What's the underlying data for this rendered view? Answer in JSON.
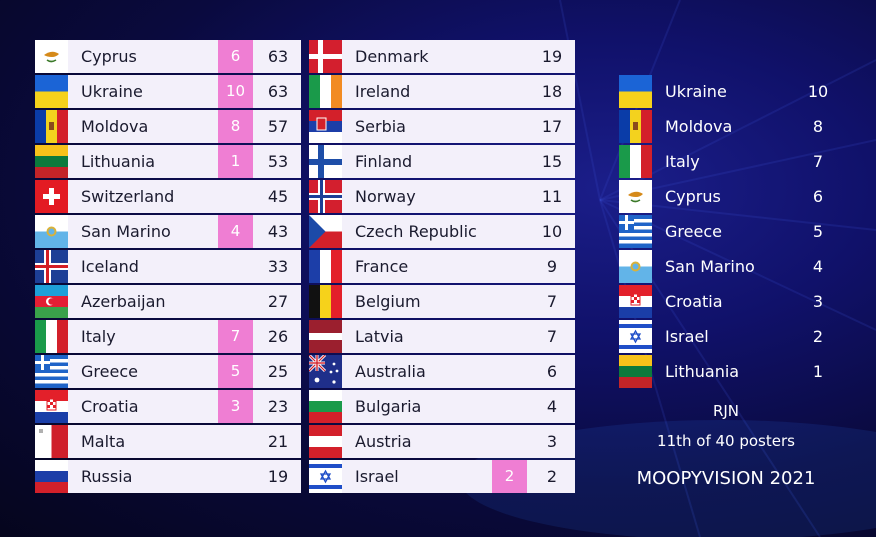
{
  "scoreboard": {
    "column1": [
      {
        "country": "Cyprus",
        "flag": "cyprus-flag",
        "points": "6",
        "total": "63"
      },
      {
        "country": "Ukraine",
        "flag": "ukraine-flag",
        "points": "10",
        "total": "63"
      },
      {
        "country": "Moldova",
        "flag": "moldova-flag",
        "points": "8",
        "total": "57"
      },
      {
        "country": "Lithuania",
        "flag": "lithuania-flag",
        "points": "1",
        "total": "53"
      },
      {
        "country": "Switzerland",
        "flag": "switzerland-flag",
        "points": "",
        "total": "45"
      },
      {
        "country": "San Marino",
        "flag": "san-marino-flag",
        "points": "4",
        "total": "43"
      },
      {
        "country": "Iceland",
        "flag": "iceland-flag",
        "points": "",
        "total": "33"
      },
      {
        "country": "Azerbaijan",
        "flag": "azerbaijan-flag",
        "points": "",
        "total": "27"
      },
      {
        "country": "Italy",
        "flag": "italy-flag",
        "points": "7",
        "total": "26"
      },
      {
        "country": "Greece",
        "flag": "greece-flag",
        "points": "5",
        "total": "25"
      },
      {
        "country": "Croatia",
        "flag": "croatia-flag",
        "points": "3",
        "total": "23"
      },
      {
        "country": "Malta",
        "flag": "malta-flag",
        "points": "",
        "total": "21"
      },
      {
        "country": "Russia",
        "flag": "russia-flag",
        "points": "",
        "total": "19"
      }
    ],
    "column2": [
      {
        "country": "Denmark",
        "flag": "denmark-flag",
        "points": "",
        "total": "19"
      },
      {
        "country": "Ireland",
        "flag": "ireland-flag",
        "points": "",
        "total": "18"
      },
      {
        "country": "Serbia",
        "flag": "serbia-flag",
        "points": "",
        "total": "17"
      },
      {
        "country": "Finland",
        "flag": "finland-flag",
        "points": "",
        "total": "15"
      },
      {
        "country": "Norway",
        "flag": "norway-flag",
        "points": "",
        "total": "11"
      },
      {
        "country": "Czech Republic",
        "flag": "czech-flag",
        "points": "",
        "total": "10"
      },
      {
        "country": "France",
        "flag": "france-flag",
        "points": "",
        "total": "9"
      },
      {
        "country": "Belgium",
        "flag": "belgium-flag",
        "points": "",
        "total": "7"
      },
      {
        "country": "Latvia",
        "flag": "latvia-flag",
        "points": "",
        "total": "7"
      },
      {
        "country": "Australia",
        "flag": "australia-flag",
        "points": "",
        "total": "6"
      },
      {
        "country": "Bulgaria",
        "flag": "bulgaria-flag",
        "points": "",
        "total": "4"
      },
      {
        "country": "Austria",
        "flag": "austria-flag",
        "points": "",
        "total": "3"
      },
      {
        "country": "Israel",
        "flag": "israel-flag",
        "points": "2",
        "total": "2"
      }
    ]
  },
  "given_points": [
    {
      "country": "Ukraine",
      "flag": "ukraine-flag",
      "points": "10"
    },
    {
      "country": "Moldova",
      "flag": "moldova-flag",
      "points": "8"
    },
    {
      "country": "Italy",
      "flag": "italy-flag",
      "points": "7"
    },
    {
      "country": "Cyprus",
      "flag": "cyprus-flag",
      "points": "6"
    },
    {
      "country": "Greece",
      "flag": "greece-flag",
      "points": "5"
    },
    {
      "country": "San Marino",
      "flag": "san-marino-flag",
      "points": "4"
    },
    {
      "country": "Croatia",
      "flag": "croatia-flag",
      "points": "3"
    },
    {
      "country": "Israel",
      "flag": "israel-flag",
      "points": "2"
    },
    {
      "country": "Lithuania",
      "flag": "lithuania-flag",
      "points": "1"
    }
  ],
  "footer": {
    "voter": "RJN",
    "rank": "11th of 40 posters",
    "brand": "MOOPYVISION 2021"
  },
  "colors": {
    "points_badge": "#ef7ed3",
    "row_background": "#f3f0fa",
    "background": "#10116a"
  }
}
